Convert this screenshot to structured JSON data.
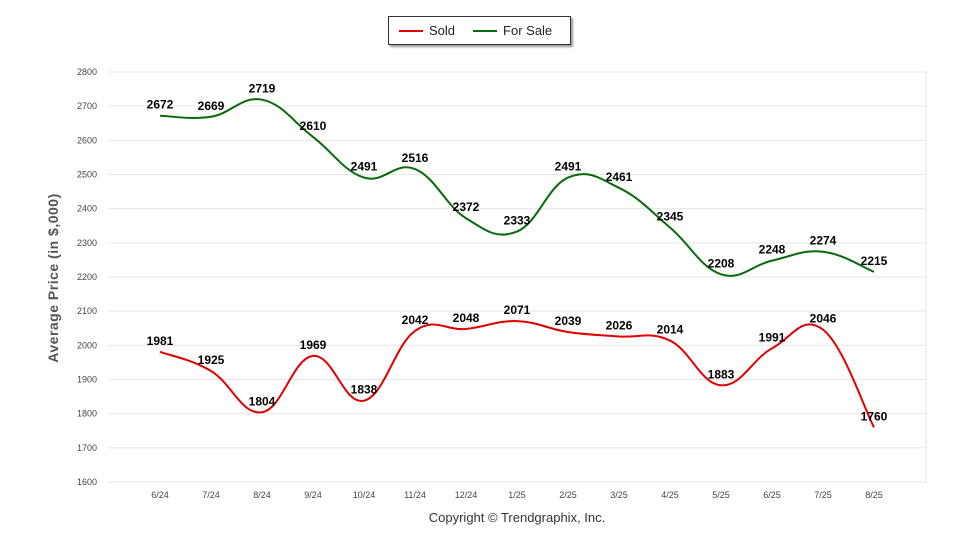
{
  "chart_data": {
    "type": "line",
    "categories": [
      "6/24",
      "7/24",
      "8/24",
      "9/24",
      "10/24",
      "11/24",
      "12/24",
      "1/25",
      "2/25",
      "3/25",
      "4/25",
      "5/25",
      "6/25",
      "7/25",
      "8/25"
    ],
    "series": [
      {
        "name": "Sold",
        "color": "#e00000",
        "values": [
          1981,
          1925,
          1804,
          1969,
          1838,
          2042,
          2048,
          2071,
          2039,
          2026,
          2014,
          1883,
          1991,
          2046,
          1760
        ]
      },
      {
        "name": "For Sale",
        "color": "#0a6a0a",
        "values": [
          2672,
          2669,
          2719,
          2610,
          2491,
          2516,
          2372,
          2333,
          2491,
          2461,
          2345,
          2208,
          2248,
          2274,
          2215
        ]
      }
    ],
    "ylabel": "Average Price (in $,000)",
    "ylim": [
      1600,
      2800
    ],
    "yticks": [
      1600,
      1700,
      1800,
      1900,
      2000,
      2100,
      2200,
      2300,
      2400,
      2500,
      2600,
      2700,
      2800
    ],
    "grid": true,
    "legend_position": "top-center"
  },
  "copyright": "Copyright © Trendgraphix, Inc."
}
